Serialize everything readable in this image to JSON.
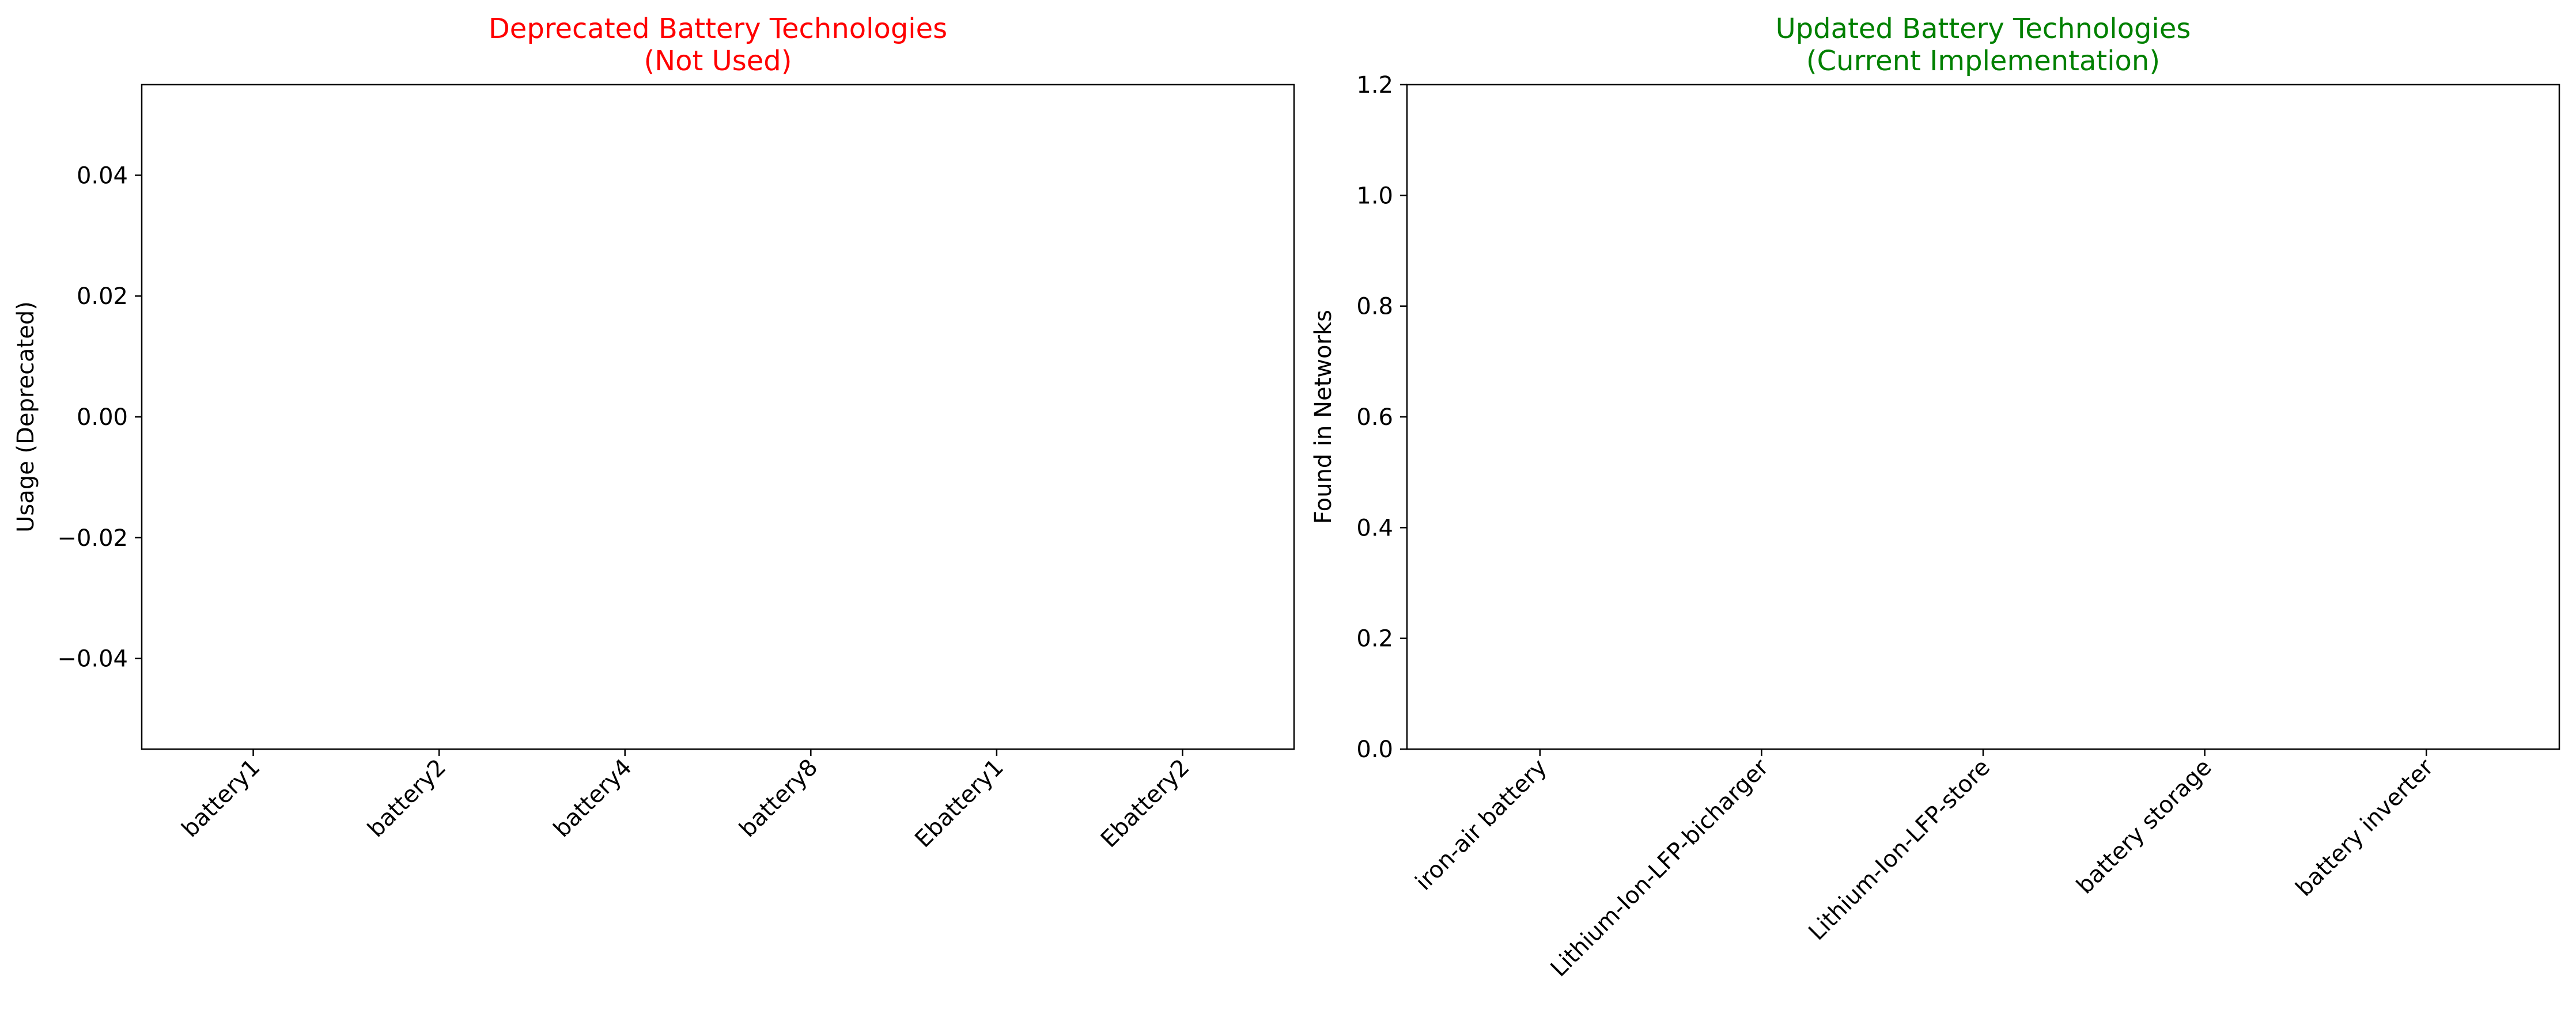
{
  "chart_data": [
    {
      "type": "bar",
      "title": [
        "Deprecated Battery Technologies",
        "(Not Used)"
      ],
      "title_color": "#ff0000",
      "xlabel": "",
      "ylabel": "Usage (Deprecated)",
      "categories": [
        "battery1",
        "battery2",
        "battery4",
        "battery8",
        "Ebattery1",
        "Ebattery2"
      ],
      "values": [
        0,
        0,
        0,
        0,
        0,
        0
      ],
      "ylim": [
        -0.055,
        0.055
      ],
      "yticks": [
        -0.04,
        -0.02,
        0.0,
        0.02,
        0.04
      ],
      "ytick_labels": [
        "−0.04",
        "−0.02",
        "0.00",
        "0.02",
        "0.04"
      ],
      "grid": false,
      "xtick_rotation": 45
    },
    {
      "type": "bar",
      "title": [
        "Updated Battery Technologies",
        "(Current Implementation)"
      ],
      "title_color": "#008000",
      "xlabel": "",
      "ylabel": "Found in Networks",
      "categories": [
        "iron-air battery",
        "Lithium-Ion-LFP-bicharger",
        "Lithium-Ion-LFP-store",
        "battery storage",
        "battery inverter"
      ],
      "values": [
        0,
        0,
        0,
        0,
        0
      ],
      "ylim": [
        0,
        1.2
      ],
      "yticks": [
        0.0,
        0.2,
        0.4,
        0.6,
        0.8,
        1.0,
        1.2
      ],
      "ytick_labels": [
        "0.0",
        "0.2",
        "0.4",
        "0.6",
        "0.8",
        "1.0",
        "1.2"
      ],
      "grid": false,
      "xtick_rotation": 45
    }
  ]
}
